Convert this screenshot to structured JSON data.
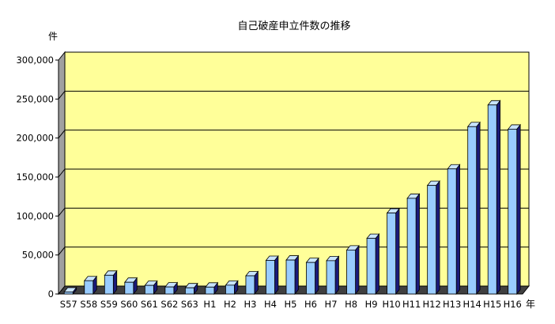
{
  "chart_data": {
    "type": "bar",
    "title": "自己破産申立件数の推移",
    "ylabel": "件",
    "xlabel": "年",
    "ylim": [
      0,
      300000
    ],
    "yticks": [
      0,
      50000,
      100000,
      150000,
      200000,
      250000,
      300000
    ],
    "ytick_labels": [
      "0",
      "50,000",
      "100,000",
      "150,000",
      "200,000",
      "250,000",
      "300,000"
    ],
    "categories": [
      "S57",
      "S58",
      "S59",
      "S60",
      "S61",
      "S62",
      "S63",
      "H1",
      "H2",
      "H3",
      "H4",
      "H5",
      "H6",
      "H7",
      "H8",
      "H9",
      "H10",
      "H11",
      "H12",
      "H13",
      "H14",
      "H15",
      "H16"
    ],
    "values": [
      2600,
      17000,
      24000,
      15000,
      11000,
      9000,
      7900,
      8800,
      11300,
      23300,
      43100,
      43500,
      40400,
      42700,
      56400,
      71300,
      103800,
      122700,
      139200,
      160400,
      214600,
      242400,
      211400
    ],
    "grid": true,
    "legend": "none",
    "colors": {
      "plot_bg": "#ffff99",
      "bar_front": "#99ccff",
      "bar_top": "#c8e4ff",
      "bar_side": "#1a1a7a",
      "wall_side": "#a0a0a0",
      "floor": "#404040"
    }
  }
}
